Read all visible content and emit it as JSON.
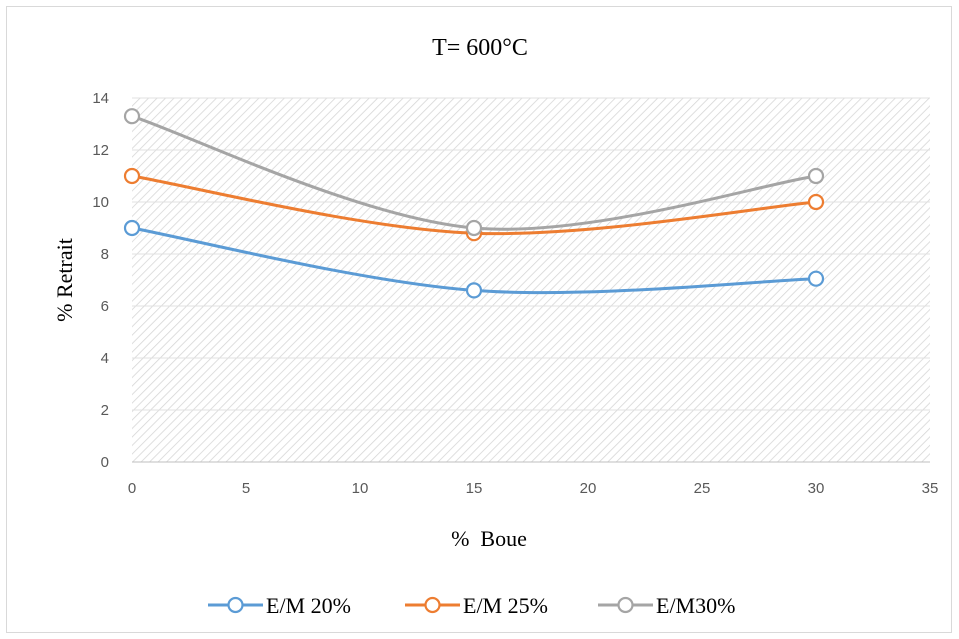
{
  "chart_data": {
    "type": "line",
    "title": "T= 600°C",
    "xlabel": "%  Boue",
    "ylabel": "% Retrait",
    "xlim": [
      0,
      35
    ],
    "ylim": [
      0,
      14
    ],
    "xticks": [
      0,
      5,
      10,
      15,
      20,
      25,
      30,
      35
    ],
    "yticks": [
      0,
      2,
      4,
      6,
      8,
      10,
      12,
      14
    ],
    "grid": true,
    "legend_position": "bottom",
    "x": [
      0,
      15,
      30
    ],
    "series": [
      {
        "name": "E/M 20%",
        "values": [
          9.0,
          6.6,
          7.05
        ],
        "color": "#5b9bd5"
      },
      {
        "name": "E/M 25%",
        "values": [
          11.0,
          8.8,
          10.0
        ],
        "color": "#ed7d31"
      },
      {
        "name": "E/M30%",
        "values": [
          13.3,
          9.0,
          11.0
        ],
        "color": "#a5a5a5"
      }
    ]
  }
}
